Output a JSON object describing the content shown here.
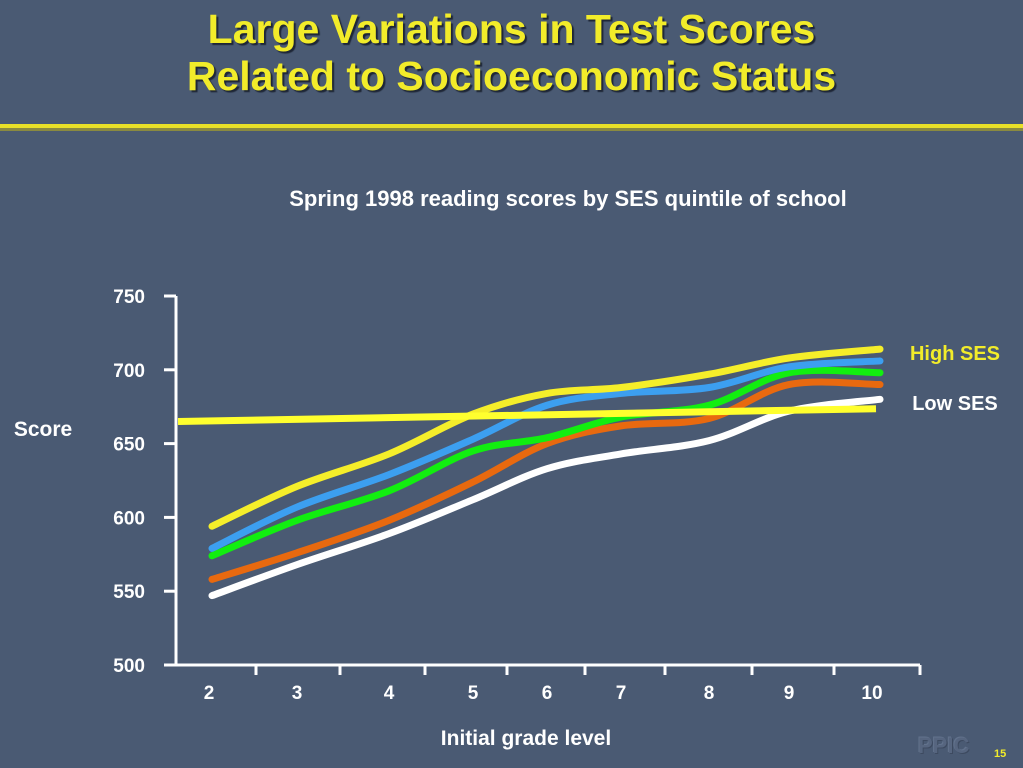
{
  "slide": {
    "title_line1": "Large Variations in Test Scores",
    "title_line2": "Related to Socioeconomic Status",
    "watermark": "PPIC",
    "page_number": "15",
    "accent_color": "#f2ec2a",
    "background_color": "#4a5a73"
  },
  "chart_data": {
    "type": "line",
    "title": "Spring 1998 reading scores by SES quintile of school",
    "xlabel": "Initial grade level",
    "ylabel": "Score",
    "ylim": [
      500,
      750
    ],
    "yticks": [
      500,
      550,
      600,
      650,
      700,
      750
    ],
    "categories": [
      "2",
      "3",
      "4",
      "5",
      "6",
      "7",
      "8",
      "9",
      "10"
    ],
    "series": [
      {
        "color": "#f5ee2a",
        "values": [
          594,
          621,
          643,
          670,
          684,
          688,
          697,
          708,
          714
        ]
      },
      {
        "color": "#3c9ff0",
        "values": [
          579,
          607,
          629,
          653,
          676,
          684,
          688,
          702,
          706
        ]
      },
      {
        "color": "#12ee10",
        "values": [
          574,
          598,
          618,
          645,
          654,
          668,
          676,
          698,
          698
        ]
      },
      {
        "color": "#e8690f",
        "values": [
          558,
          576,
          598,
          624,
          650,
          662,
          667,
          690,
          690
        ]
      },
      {
        "color": "#ffffff",
        "values": [
          547,
          568,
          589,
          612,
          633,
          643,
          652,
          672,
          680
        ]
      }
    ],
    "reference_line": {
      "color": "#ffff2e",
      "values": [
        667,
        675
      ]
    },
    "annotations": [
      {
        "text": "High SES",
        "color": "#f2ec2a"
      },
      {
        "text": "Low SES",
        "color": "#ffffff"
      }
    ],
    "grid": false,
    "legend": "none"
  }
}
